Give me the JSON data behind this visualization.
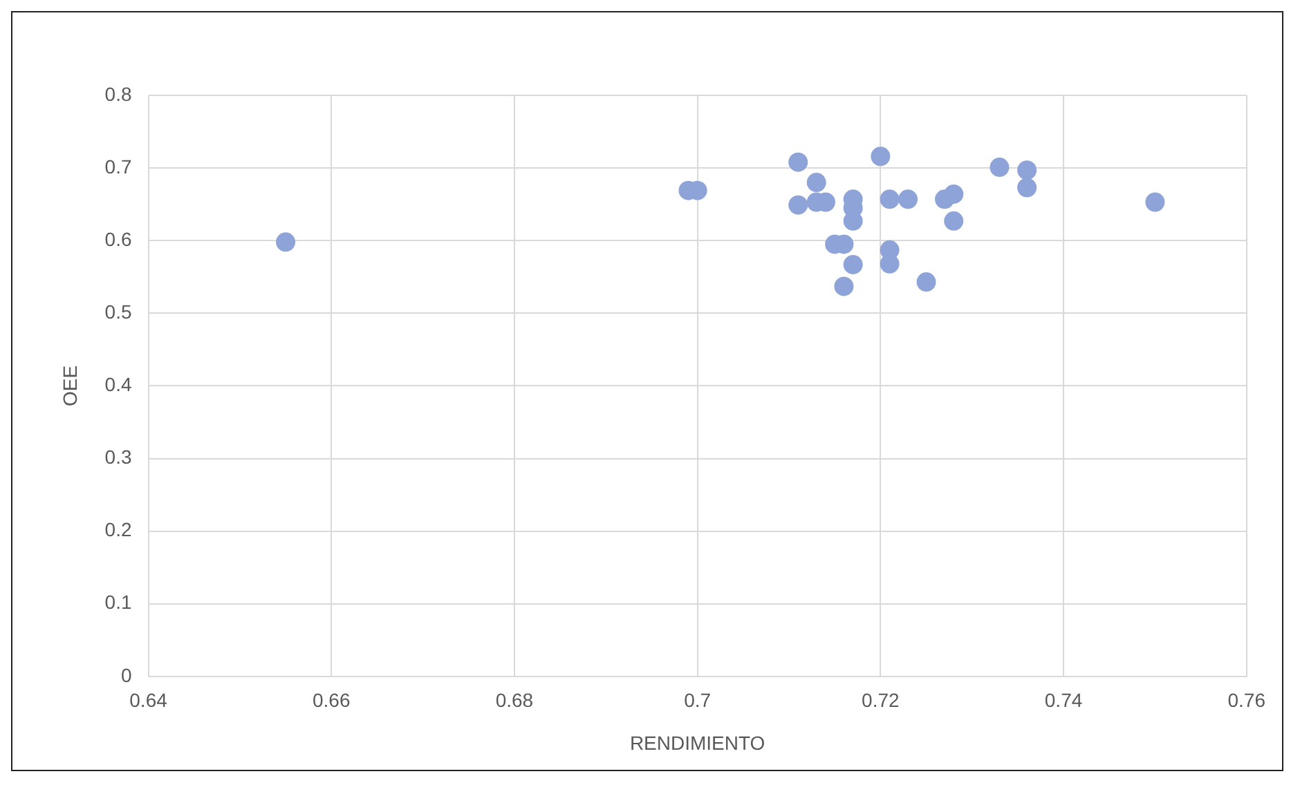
{
  "chart_data": {
    "type": "scatter",
    "xlabel": "RENDIMIENTO",
    "ylabel": "OEE",
    "xlim": [
      0.64,
      0.76
    ],
    "xticks": [
      0.64,
      0.66,
      0.68,
      0.7,
      0.72,
      0.74,
      0.76
    ],
    "ylim": [
      0,
      0.8
    ],
    "yticks": [
      0,
      0.1,
      0.2,
      0.3,
      0.4,
      0.5,
      0.6,
      0.7,
      0.8
    ],
    "grid": true,
    "legend": false,
    "marker": "circle",
    "series": [
      {
        "color": "#8ea4d8",
        "x": [
          0.655,
          0.699,
          0.7,
          0.711,
          0.711,
          0.713,
          0.713,
          0.714,
          0.716,
          0.717,
          0.717,
          0.717,
          0.715,
          0.716,
          0.717,
          0.716,
          0.72,
          0.721,
          0.723,
          0.721,
          0.721,
          0.725,
          0.727,
          0.728,
          0.728,
          0.733,
          0.736,
          0.736,
          0.75
        ],
        "values": [
          0.598,
          0.669,
          0.669,
          0.708,
          0.649,
          0.68,
          0.653,
          0.653,
          null,
          0.657,
          0.645,
          0.627,
          0.595,
          0.595,
          0.567,
          0.537,
          0.716,
          0.657,
          0.657,
          0.587,
          0.568,
          0.543,
          0.657,
          0.664,
          0.627,
          0.701,
          0.697,
          0.673,
          0.653
        ]
      }
    ]
  }
}
